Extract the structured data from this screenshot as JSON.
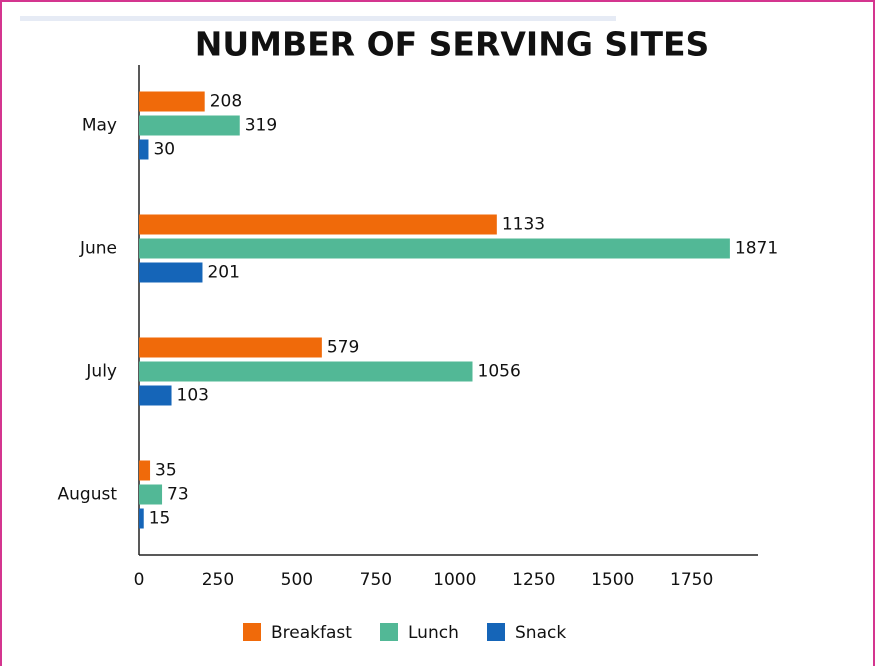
{
  "chart_data": {
    "type": "bar",
    "orientation": "horizontal",
    "title": "NUMBER OF SERVING SITES",
    "categories": [
      "May",
      "June",
      "July",
      "August"
    ],
    "series": [
      {
        "name": "Breakfast",
        "color": "#f06a0a",
        "values": [
          208,
          1133,
          579,
          35
        ]
      },
      {
        "name": "Lunch",
        "color": "#52b896",
        "values": [
          319,
          1871,
          1056,
          73
        ]
      },
      {
        "name": "Snack",
        "color": "#1565b8",
        "values": [
          30,
          201,
          103,
          15
        ]
      }
    ],
    "xlim": [
      0,
      1960
    ],
    "xticks": [
      0,
      250,
      500,
      750,
      1000,
      1250,
      1500,
      1750
    ],
    "grid": false,
    "legend": "bottom"
  }
}
